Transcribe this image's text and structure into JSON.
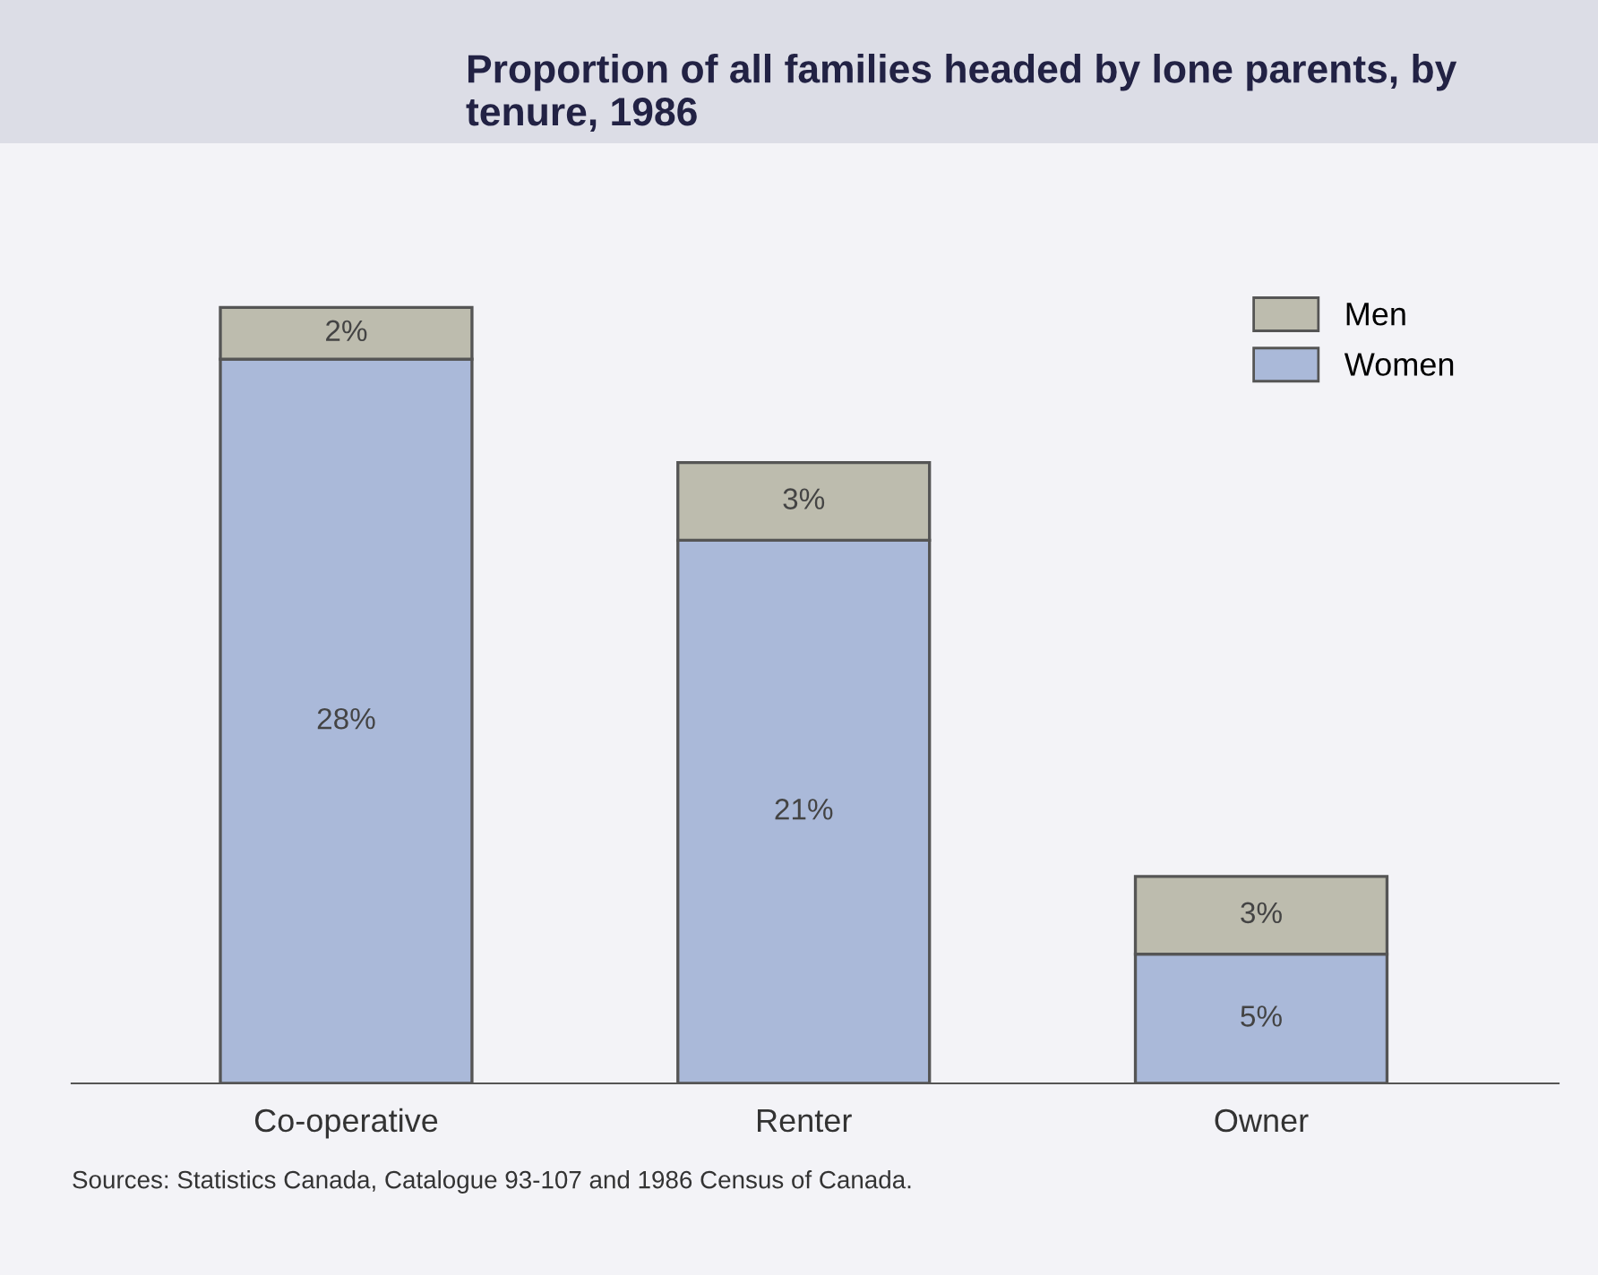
{
  "chart_data": {
    "type": "bar",
    "title": "Proportion of all families headed by lone parents, by tenure, 1986",
    "categories": [
      "Co-operative",
      "Renter",
      "Owner"
    ],
    "stacked": true,
    "legend": "top right",
    "grid": false,
    "series": [
      {
        "name": "Women",
        "color": "#aab9d9",
        "values": [
          28,
          21,
          5
        ],
        "value_labels": [
          "28%",
          "21%",
          "5%"
        ]
      },
      {
        "name": "Men",
        "color": "#bdbcae",
        "values": [
          2,
          3,
          3
        ],
        "value_labels": [
          "2%",
          "3%",
          "3%"
        ]
      }
    ],
    "annotations": [
      "Sources: Statistics Canada, Catalogue 93-107 and 1986 Census of Canada."
    ]
  }
}
